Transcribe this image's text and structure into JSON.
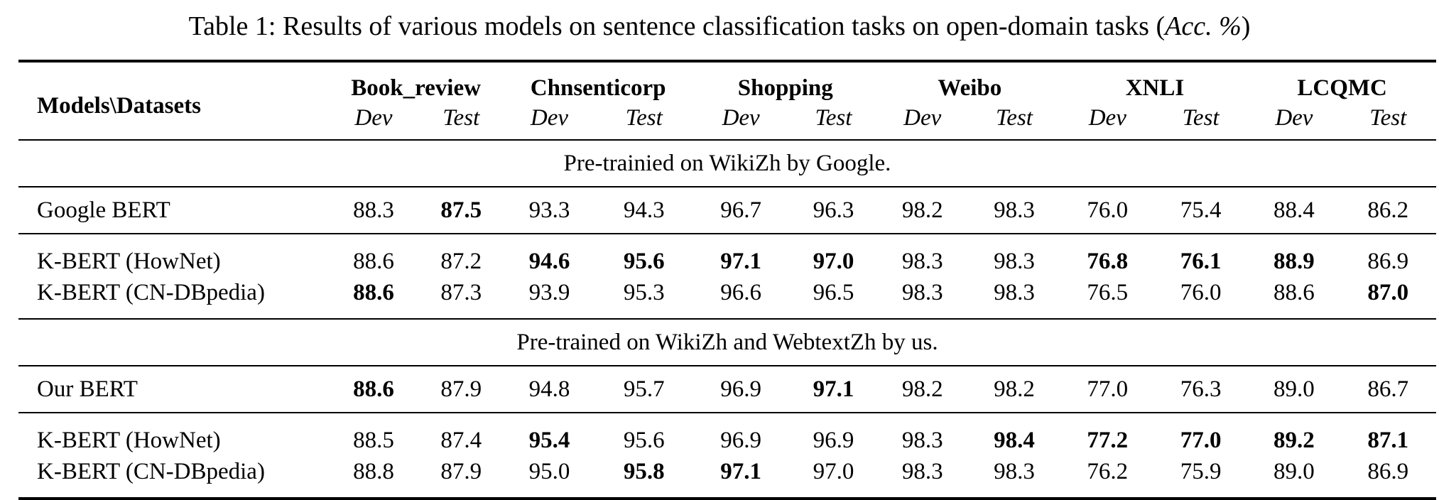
{
  "caption": {
    "main": "Table 1: Results of various models on sentence classification tasks on open-domain tasks (",
    "metric": "Acc. %",
    "close": ")"
  },
  "header": {
    "models_label": "Models\\Datasets",
    "datasets": [
      "Book_review",
      "Chnsenticorp",
      "Shopping",
      "Weibo",
      "XNLI",
      "LCQMC"
    ],
    "dev_label": "Dev",
    "test_label": "Test"
  },
  "sections": [
    {
      "title": "Pre-trainied on WikiZh by Google.",
      "groups": [
        {
          "rows": [
            {
              "model": "Google BERT",
              "values": [
                "88.3",
                "87.5",
                "93.3",
                "94.3",
                "96.7",
                "96.3",
                "98.2",
                "98.3",
                "76.0",
                "75.4",
                "88.4",
                "86.2"
              ],
              "bold": [
                1
              ]
            }
          ]
        },
        {
          "rows": [
            {
              "model": "K-BERT (HowNet)",
              "values": [
                "88.6",
                "87.2",
                "94.6",
                "95.6",
                "97.1",
                "97.0",
                "98.3",
                "98.3",
                "76.8",
                "76.1",
                "88.9",
                "86.9"
              ],
              "bold": [
                2,
                3,
                4,
                5,
                8,
                9,
                10
              ]
            },
            {
              "model": "K-BERT (CN-DBpedia)",
              "values": [
                "88.6",
                "87.3",
                "93.9",
                "95.3",
                "96.6",
                "96.5",
                "98.3",
                "98.3",
                "76.5",
                "76.0",
                "88.6",
                "87.0"
              ],
              "bold": [
                0,
                11
              ]
            }
          ]
        }
      ]
    },
    {
      "title": "Pre-trained on WikiZh and WebtextZh by us.",
      "groups": [
        {
          "rows": [
            {
              "model": "Our BERT",
              "values": [
                "88.6",
                "87.9",
                "94.8",
                "95.7",
                "96.9",
                "97.1",
                "98.2",
                "98.2",
                "77.0",
                "76.3",
                "89.0",
                "86.7"
              ],
              "bold": [
                0,
                5
              ]
            }
          ]
        },
        {
          "rows": [
            {
              "model": "K-BERT (HowNet)",
              "values": [
                "88.5",
                "87.4",
                "95.4",
                "95.6",
                "96.9",
                "96.9",
                "98.3",
                "98.4",
                "77.2",
                "77.0",
                "89.2",
                "87.1"
              ],
              "bold": [
                2,
                7,
                8,
                9,
                10,
                11
              ]
            },
            {
              "model": "K-BERT (CN-DBpedia)",
              "values": [
                "88.8",
                "87.9",
                "95.0",
                "95.8",
                "97.1",
                "97.0",
                "98.3",
                "98.3",
                "76.2",
                "75.9",
                "89.0",
                "86.9"
              ],
              "bold": [
                3,
                4
              ]
            }
          ]
        }
      ]
    }
  ]
}
